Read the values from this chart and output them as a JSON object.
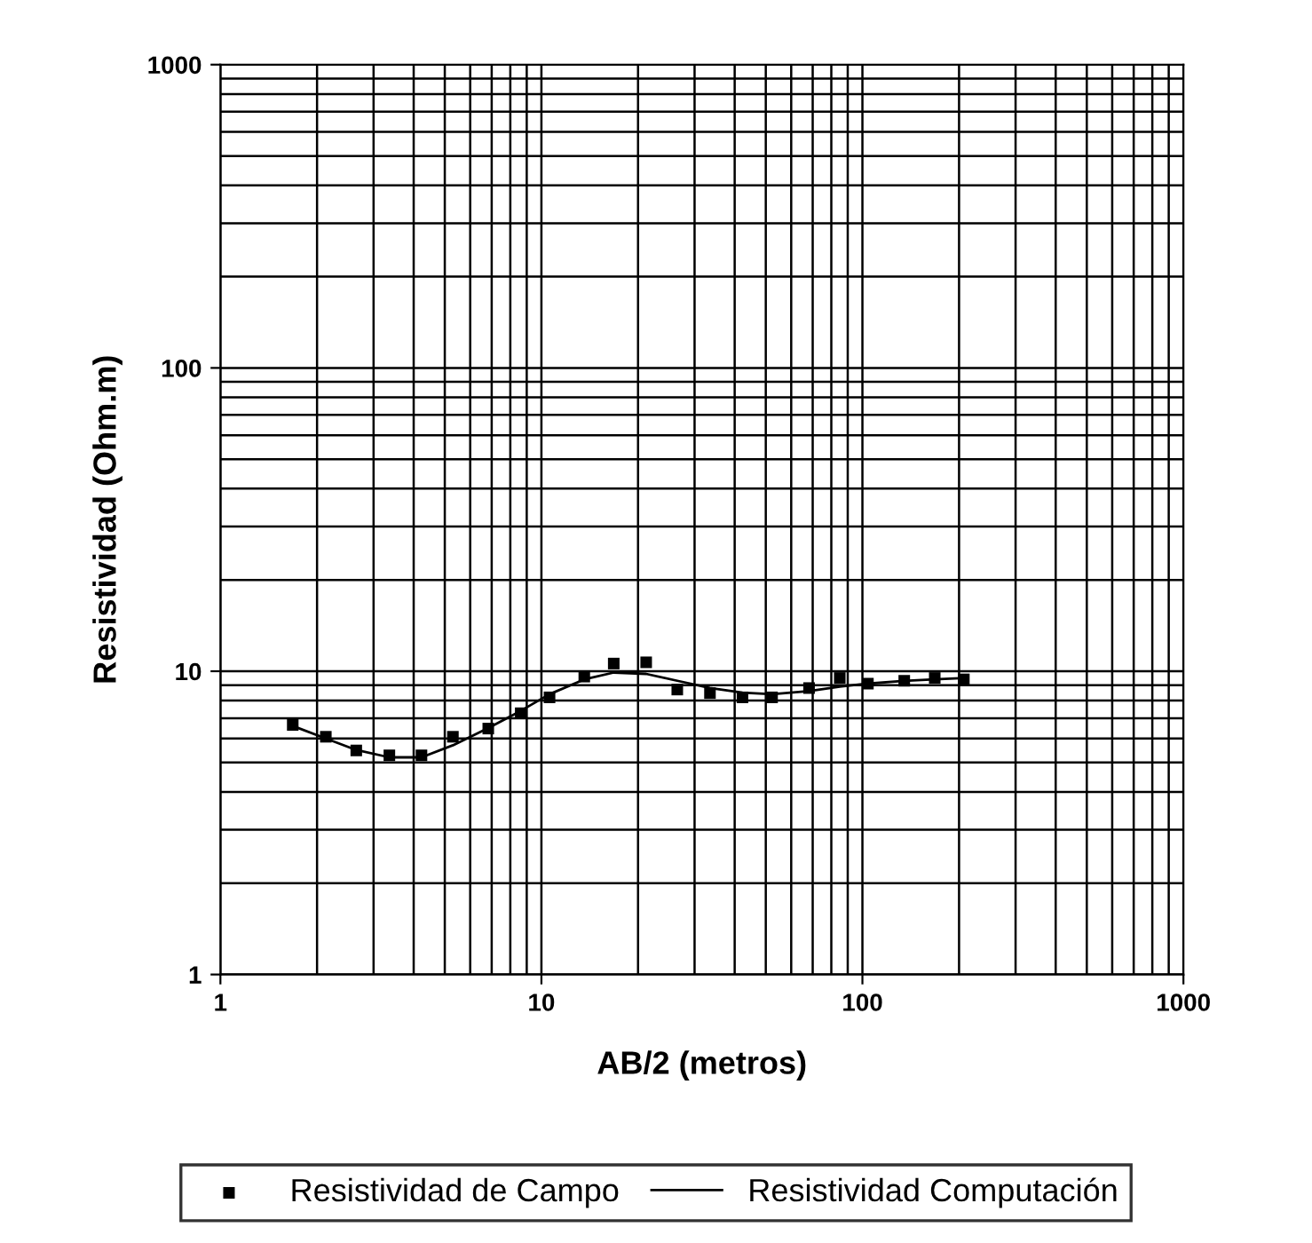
{
  "chart_data": {
    "type": "scatter",
    "xlabel": "AB/2 (metros)",
    "ylabel": "Resistividad (Ohm.m)",
    "log": "xy",
    "xlim": [
      1,
      1000
    ],
    "ylim": [
      1,
      1000
    ],
    "xticks": [
      1,
      10,
      100,
      1000
    ],
    "yticks": [
      1,
      10,
      100,
      1000
    ],
    "grid": true,
    "legend": "bottom",
    "series": [
      {
        "name": "Resistividad de Campo",
        "marker": "square",
        "color": "#000000",
        "x": [
          1.68,
          2.13,
          2.65,
          3.36,
          4.23,
          5.3,
          6.83,
          8.62,
          10.6,
          13.6,
          16.8,
          21.2,
          26.5,
          33.5,
          42.3,
          52.3,
          68.2,
          85,
          104,
          135,
          168,
          207
        ],
        "values": [
          6.65,
          6.08,
          5.48,
          5.28,
          5.28,
          6.08,
          6.47,
          7.27,
          8.2,
          9.6,
          10.6,
          10.7,
          8.7,
          8.47,
          8.2,
          8.2,
          8.8,
          9.5,
          9.1,
          9.3,
          9.5,
          9.4
        ]
      },
      {
        "name": "Resistividad Computación",
        "type": "line",
        "marker": "none",
        "line_style": "solid",
        "color": "#000000",
        "x": [
          1.68,
          2.13,
          2.65,
          3.36,
          4.23,
          5.3,
          6.83,
          8.62,
          10.6,
          13.6,
          16.8,
          21.2,
          26.5,
          33.5,
          42.3,
          52.3,
          68.2,
          85,
          104,
          135,
          168,
          207
        ],
        "values": [
          6.6,
          6.0,
          5.5,
          5.2,
          5.2,
          5.7,
          6.5,
          7.4,
          8.4,
          9.4,
          9.9,
          9.8,
          9.3,
          8.8,
          8.5,
          8.4,
          8.6,
          8.9,
          9.1,
          9.3,
          9.4,
          9.5
        ]
      }
    ]
  }
}
